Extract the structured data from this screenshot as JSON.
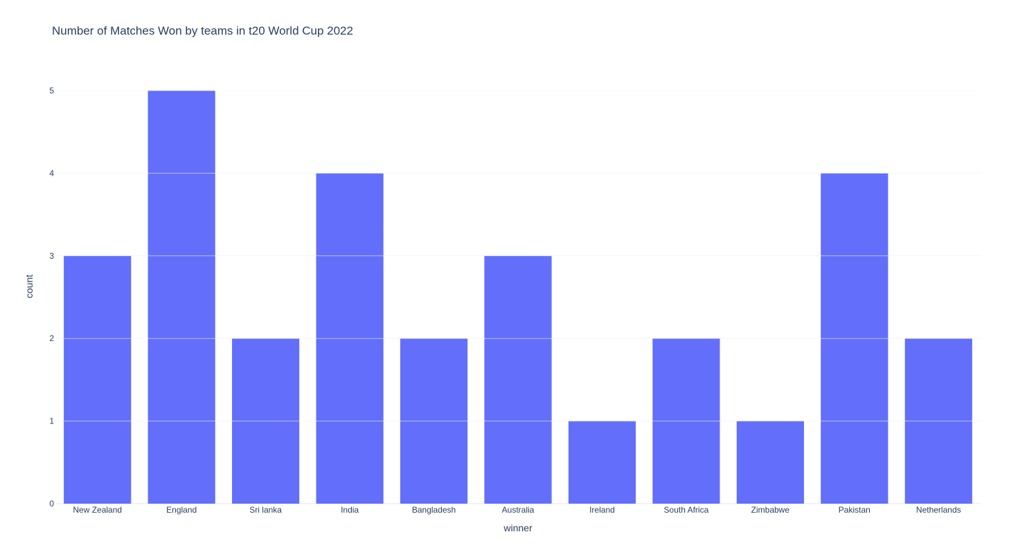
{
  "chart_data": {
    "type": "bar",
    "title": "Number of Matches Won by teams in t20 World Cup 2022",
    "xlabel": "winner",
    "ylabel": "count",
    "categories": [
      "New Zealand",
      "England",
      "Sri lanka",
      "India",
      "Bangladesh",
      "Australia",
      "Ireland",
      "South Africa",
      "Zimbabwe",
      "Pakistan",
      "Netherlands"
    ],
    "values": [
      3,
      5,
      2,
      4,
      2,
      3,
      1,
      2,
      1,
      4,
      2
    ],
    "ylim": [
      0,
      5
    ],
    "yticks": [
      0,
      1,
      2,
      3,
      4,
      5
    ],
    "grid": true,
    "bar_color": "#636efa",
    "grid_color": "#ebf0f8",
    "text_color": "#2a3f5f"
  }
}
